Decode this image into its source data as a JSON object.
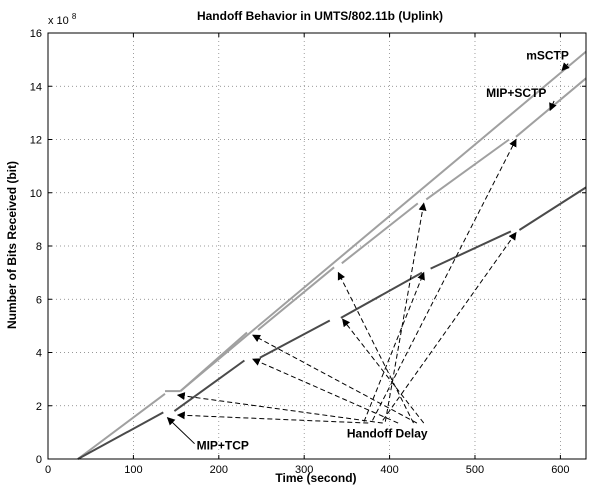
{
  "chart_data": {
    "type": "line",
    "title": "Handoff Behavior in UMTS/802.11b (Uplink)",
    "xlabel": "Time (second)",
    "ylabel": "Number of Bits Received (bit)",
    "y_multiplier": "x 10",
    "y_multiplier_exp": "8",
    "xlim": [
      0,
      630
    ],
    "ylim": [
      0,
      16
    ],
    "xticks": [
      0,
      100,
      200,
      300,
      400,
      500,
      600
    ],
    "yticks": [
      0,
      2,
      4,
      6,
      8,
      10,
      12,
      14,
      16
    ],
    "grid": true,
    "series": [
      {
        "name": "mSCTP",
        "color": "#a0a0a0",
        "segments": [
          [
            [
              35,
              0.0
            ],
            [
              137,
              2.45
            ]
          ],
          [
            [
              137,
              2.55
            ],
            [
              155,
              2.55
            ]
          ],
          [
            [
              155,
              2.55
            ],
            [
              630,
              15.3
            ]
          ]
        ]
      },
      {
        "name": "MIP+SCTP",
        "color": "#a0a0a0",
        "segments": [
          [
            [
              155,
              2.55
            ],
            [
              233,
              4.75
            ]
          ],
          [
            [
              246,
              4.85
            ],
            [
              335,
              7.2
            ]
          ],
          [
            [
              344,
              7.35
            ],
            [
              433,
              9.6
            ]
          ],
          [
            [
              443,
              9.75
            ],
            [
              540,
              12.0
            ]
          ],
          [
            [
              548,
              12.1
            ],
            [
              630,
              14.3
            ]
          ]
        ]
      },
      {
        "name": "MIP+TCP",
        "color": "#4a4a4a",
        "segments": [
          [
            [
              35,
              0.0
            ],
            [
              135,
              1.75
            ]
          ],
          [
            [
              148,
              1.8
            ],
            [
              230,
              3.7
            ]
          ],
          [
            [
              248,
              3.8
            ],
            [
              330,
              5.2
            ]
          ],
          [
            [
              343,
              5.3
            ],
            [
              438,
              7.0
            ]
          ],
          [
            [
              448,
              7.15
            ],
            [
              542,
              8.55
            ]
          ],
          [
            [
              552,
              8.6
            ],
            [
              630,
              10.2
            ]
          ]
        ]
      }
    ],
    "annotations": [
      {
        "text": "mSCTP",
        "x": 560,
        "y": 15.0,
        "arrow_to": [
          602,
          14.6
        ]
      },
      {
        "text": "MIP+SCTP",
        "x": 513,
        "y": 13.6,
        "arrow_to": [
          588,
          13.1
        ]
      },
      {
        "text": "MIP+TCP",
        "x": 174,
        "y": 0.35,
        "arrow_to": [
          140,
          1.55
        ]
      },
      {
        "text": "Handoff Delay",
        "x": 350,
        "y": 0.8,
        "arrows_from": [
          [
            375,
            1.35
          ],
          [
            392,
            1.35
          ],
          [
            410,
            1.35
          ],
          [
            432,
            1.35
          ],
          [
            428,
            1.35
          ],
          [
            440,
            1.35
          ],
          [
            370,
            1.4
          ],
          [
            395,
            1.4
          ],
          [
            392,
            1.45
          ],
          [
            380,
            1.45
          ]
        ],
        "arrows_to": [
          [
            152,
            1.65
          ],
          [
            152,
            2.4
          ],
          [
            240,
            3.75
          ],
          [
            240,
            4.65
          ],
          [
            340,
            7.0
          ],
          [
            345,
            5.25
          ],
          [
            440,
            7.0
          ],
          [
            440,
            9.6
          ],
          [
            548,
            8.5
          ],
          [
            548,
            12.0
          ]
        ]
      }
    ]
  }
}
